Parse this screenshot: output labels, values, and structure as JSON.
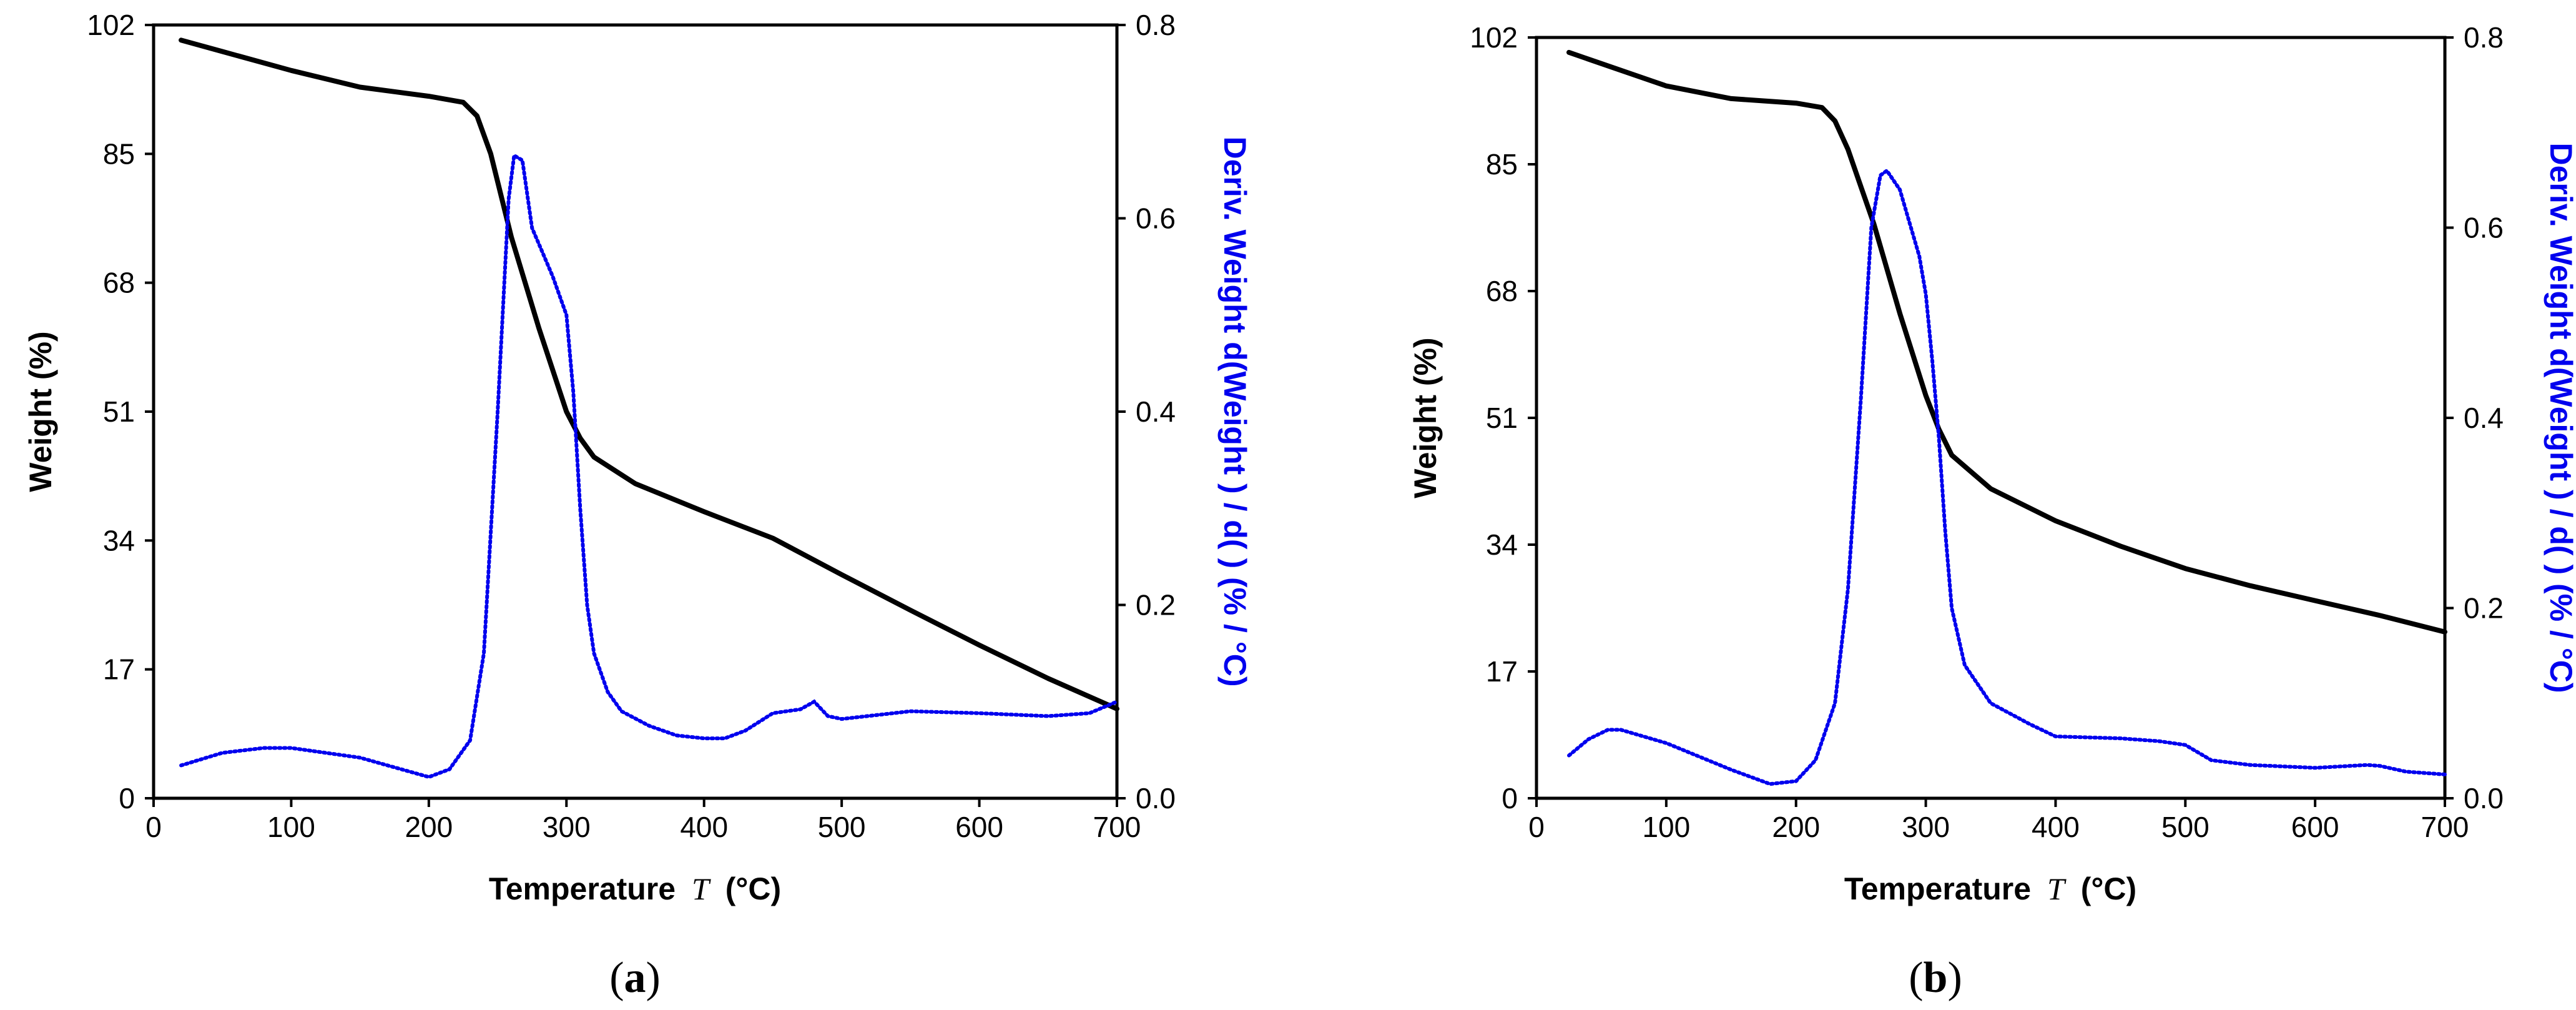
{
  "chart_data": [
    {
      "type": "line",
      "panel_label_open": "(",
      "panel_label_letter": "a",
      "panel_label_close": ")",
      "xlabel_main": "Temperature",
      "xlabel_symbol": "T",
      "xlabel_unit": "(°C)",
      "ylabel": "Weight  (%)",
      "y2label": "Deriv. Weight d(Weight ) / d( ) (% / °C)",
      "xlim": [
        0,
        700
      ],
      "ylim": [
        0,
        102
      ],
      "y2lim": [
        0,
        0.8
      ],
      "x_ticks": [
        "0",
        "100",
        "200",
        "300",
        "400",
        "500",
        "600",
        "700"
      ],
      "y_ticks": [
        "0",
        "17",
        "34",
        "51",
        "68",
        "85",
        "102"
      ],
      "y2_ticks": [
        "0.0",
        "0.2",
        "0.4",
        "0.6",
        "0.8"
      ],
      "series": [
        {
          "name": "Weight",
          "axis": "left",
          "color": "#000000",
          "style": "solid",
          "x": [
            20,
            50,
            100,
            150,
            200,
            225,
            235,
            245,
            260,
            280,
            300,
            310,
            320,
            350,
            400,
            450,
            500,
            550,
            600,
            650,
            700
          ],
          "y": [
            100,
            98.5,
            96,
            93.8,
            92.6,
            91.8,
            90,
            85,
            74,
            62,
            51,
            47.5,
            45,
            41.5,
            37.8,
            34.3,
            29.5,
            24.8,
            20.2,
            15.8,
            11.8
          ]
        },
        {
          "name": "Deriv. Weight",
          "axis": "right",
          "color": "#0000ee",
          "style": "dotted",
          "x": [
            20,
            50,
            80,
            100,
            150,
            180,
            200,
            215,
            230,
            240,
            250,
            258,
            262,
            268,
            275,
            290,
            300,
            305,
            310,
            315,
            320,
            330,
            340,
            360,
            380,
            400,
            415,
            430,
            450,
            470,
            480,
            490,
            500,
            550,
            600,
            650,
            680,
            700
          ],
          "y": [
            0.034,
            0.047,
            0.052,
            0.052,
            0.042,
            0.03,
            0.022,
            0.03,
            0.06,
            0.15,
            0.4,
            0.62,
            0.665,
            0.66,
            0.59,
            0.54,
            0.5,
            0.42,
            0.3,
            0.2,
            0.15,
            0.11,
            0.09,
            0.075,
            0.065,
            0.062,
            0.062,
            0.07,
            0.088,
            0.092,
            0.1,
            0.085,
            0.082,
            0.09,
            0.088,
            0.085,
            0.088,
            0.1
          ]
        }
      ]
    },
    {
      "type": "line",
      "panel_label_open": "(",
      "panel_label_letter": "b",
      "panel_label_close": ")",
      "xlabel_main": "Temperature",
      "xlabel_symbol": "T",
      "xlabel_unit": "(°C)",
      "ylabel": "Weight  (%)",
      "y2label": "Deriv. Weight d(Weight ) / d( ) (% / °C)",
      "xlim": [
        0,
        700
      ],
      "ylim": [
        0,
        102
      ],
      "y2lim": [
        0,
        0.8
      ],
      "x_ticks": [
        "0",
        "100",
        "200",
        "300",
        "400",
        "500",
        "600",
        "700"
      ],
      "y_ticks": [
        "0",
        "17",
        "34",
        "51",
        "68",
        "85",
        "102"
      ],
      "y2_ticks": [
        "0.0",
        "0.2",
        "0.4",
        "0.6",
        "0.8"
      ],
      "series": [
        {
          "name": "Weight",
          "axis": "left",
          "color": "#000000",
          "style": "solid",
          "x": [
            25,
            50,
            100,
            150,
            200,
            220,
            230,
            240,
            250,
            260,
            280,
            300,
            310,
            320,
            350,
            400,
            450,
            500,
            550,
            600,
            650,
            700
          ],
          "y": [
            100,
            98.5,
            95.5,
            93.8,
            93.2,
            92.6,
            90.8,
            87,
            82,
            77,
            65,
            54,
            49.5,
            46,
            41.5,
            37.2,
            33.8,
            30.8,
            28.5,
            26.5,
            24.5,
            22.3
          ]
        },
        {
          "name": "Deriv. Weight",
          "axis": "right",
          "color": "#0000ee",
          "style": "dotted",
          "x": [
            25,
            40,
            55,
            65,
            100,
            150,
            180,
            200,
            215,
            230,
            240,
            250,
            258,
            265,
            270,
            280,
            295,
            300,
            305,
            310,
            315,
            320,
            330,
            350,
            380,
            400,
            450,
            480,
            500,
            520,
            550,
            600,
            640,
            650,
            670,
            700
          ],
          "y": [
            0.045,
            0.062,
            0.072,
            0.072,
            0.058,
            0.03,
            0.015,
            0.018,
            0.04,
            0.1,
            0.22,
            0.42,
            0.6,
            0.655,
            0.66,
            0.64,
            0.57,
            0.53,
            0.46,
            0.38,
            0.28,
            0.2,
            0.14,
            0.1,
            0.078,
            0.065,
            0.063,
            0.06,
            0.056,
            0.04,
            0.035,
            0.032,
            0.035,
            0.034,
            0.028,
            0.025
          ]
        }
      ]
    }
  ]
}
